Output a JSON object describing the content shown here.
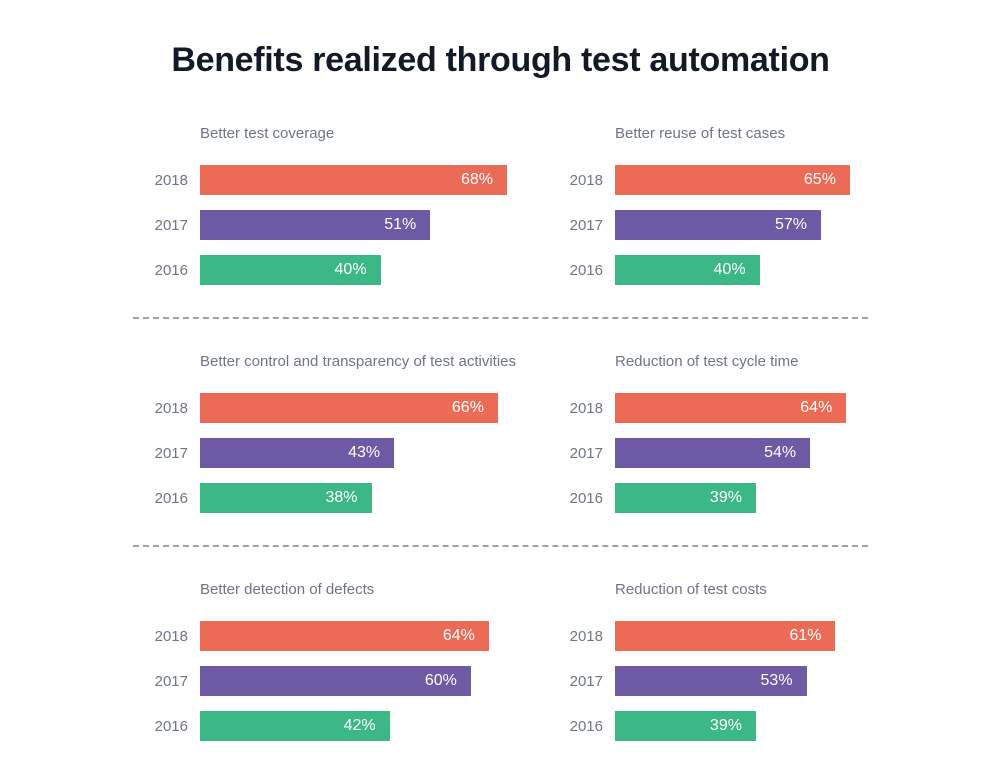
{
  "page": {
    "title": "Benefits realized through test automation"
  },
  "colors": {
    "series": [
      "#EC6B56",
      "#6E59A4",
      "#3CB886"
    ],
    "series_names": {
      "2018": "#EC6B56",
      "2017": "#6E59A4",
      "2016": "#3CB886"
    },
    "main_title_text": "#131A26",
    "label_text": "#6E7681",
    "value_text": "#FFFFFF",
    "divider": "#9AA0A8",
    "background": "#FFFFFF"
  },
  "chart_data": [
    {
      "type": "bar",
      "orientation": "horizontal",
      "title": "Better test coverage",
      "categories": [
        "2018",
        "2017",
        "2016"
      ],
      "values": [
        68,
        51,
        40
      ],
      "labels": [
        "68%",
        "51%",
        "40%"
      ],
      "xlim": [
        0,
        70
      ],
      "grid": false,
      "legend": false,
      "value_label_position": "inside-end"
    },
    {
      "type": "bar",
      "orientation": "horizontal",
      "title": "Better reuse of test cases",
      "categories": [
        "2018",
        "2017",
        "2016"
      ],
      "values": [
        65,
        57,
        40
      ],
      "labels": [
        "65%",
        "57%",
        "40%"
      ],
      "xlim": [
        0,
        70
      ],
      "grid": false,
      "legend": false,
      "value_label_position": "inside-end"
    },
    {
      "type": "bar",
      "orientation": "horizontal",
      "title": "Better control and transparency of test activities",
      "categories": [
        "2018",
        "2017",
        "2016"
      ],
      "values": [
        66,
        43,
        38
      ],
      "labels": [
        "66%",
        "43%",
        "38%"
      ],
      "xlim": [
        0,
        70
      ],
      "grid": false,
      "legend": false,
      "value_label_position": "inside-end"
    },
    {
      "type": "bar",
      "orientation": "horizontal",
      "title": "Reduction of test cycle time",
      "categories": [
        "2018",
        "2017",
        "2016"
      ],
      "values": [
        64,
        54,
        39
      ],
      "labels": [
        "64%",
        "54%",
        "39%"
      ],
      "xlim": [
        0,
        70
      ],
      "grid": false,
      "legend": false,
      "value_label_position": "inside-end"
    },
    {
      "type": "bar",
      "orientation": "horizontal",
      "title": "Better detection of defects",
      "categories": [
        "2018",
        "2017",
        "2016"
      ],
      "values": [
        64,
        60,
        42
      ],
      "labels": [
        "64%",
        "60%",
        "42%"
      ],
      "xlim": [
        0,
        70
      ],
      "grid": false,
      "legend": false,
      "value_label_position": "inside-end"
    },
    {
      "type": "bar",
      "orientation": "horizontal",
      "title": "Reduction of test costs",
      "categories": [
        "2018",
        "2017",
        "2016"
      ],
      "values": [
        61,
        53,
        39
      ],
      "labels": [
        "61%",
        "53%",
        "39%"
      ],
      "xlim": [
        0,
        70
      ],
      "grid": false,
      "legend": false,
      "value_label_position": "inside-end"
    }
  ]
}
